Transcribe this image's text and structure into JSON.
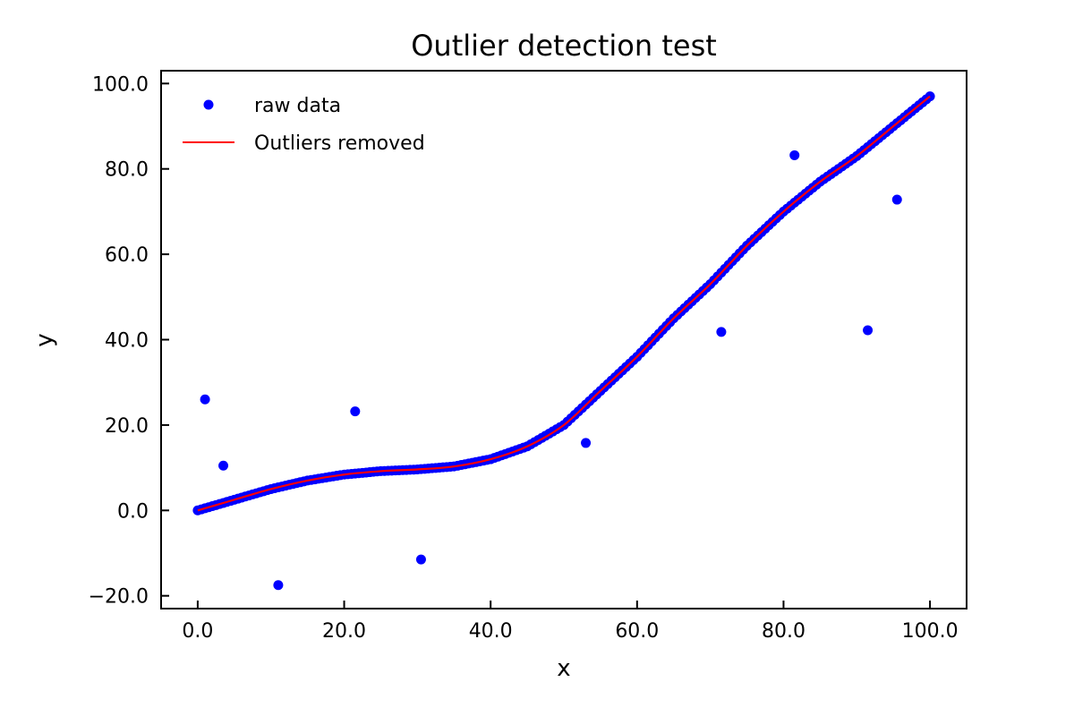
{
  "chart_data": {
    "type": "scatter",
    "title": "Outlier detection test",
    "xlabel": "x",
    "ylabel": "y",
    "xlim": [
      -5,
      105
    ],
    "ylim": [
      -23,
      103
    ],
    "xticks": [
      0,
      20,
      40,
      60,
      80,
      100
    ],
    "yticks": [
      -20,
      0,
      20,
      40,
      60,
      80,
      100
    ],
    "xtick_labels": [
      "0.0",
      "20.0",
      "40.0",
      "60.0",
      "80.0",
      "100.0"
    ],
    "ytick_labels": [
      "−20.0",
      "0.0",
      "20.0",
      "40.0",
      "60.0",
      "80.0",
      "100.0"
    ],
    "grid": false,
    "legend_position": "top-left",
    "series": [
      {
        "name": "raw data",
        "kind": "scatter",
        "color": "#0000ff",
        "curve_points": "generated along the fitted curve from x=0 to x=100",
        "outliers": [
          {
            "x": 1,
            "y": 26
          },
          {
            "x": 3.5,
            "y": 10.5
          },
          {
            "x": 11,
            "y": -17.5
          },
          {
            "x": 21.5,
            "y": 23.2
          },
          {
            "x": 30.5,
            "y": -11.5
          },
          {
            "x": 53,
            "y": 15.8
          },
          {
            "x": 71.5,
            "y": 41.8
          },
          {
            "x": 81.5,
            "y": 83.2
          },
          {
            "x": 91.5,
            "y": 42.2
          },
          {
            "x": 95.5,
            "y": 72.8
          }
        ]
      },
      {
        "name": "Outliers removed",
        "kind": "line",
        "color": "#ff0000",
        "x": [
          0,
          5,
          10,
          15,
          20,
          25,
          30,
          35,
          40,
          45,
          50,
          55,
          60,
          65,
          70,
          75,
          80,
          85,
          90,
          95,
          100
        ],
        "y": [
          0,
          2.5,
          5.0,
          7.0,
          8.4,
          9.2,
          9.6,
          10.3,
          12.0,
          15.0,
          20.0,
          28.0,
          36.0,
          45.0,
          53.0,
          62.0,
          70.0,
          77.0,
          83.0,
          90.0,
          97.0
        ]
      }
    ]
  }
}
